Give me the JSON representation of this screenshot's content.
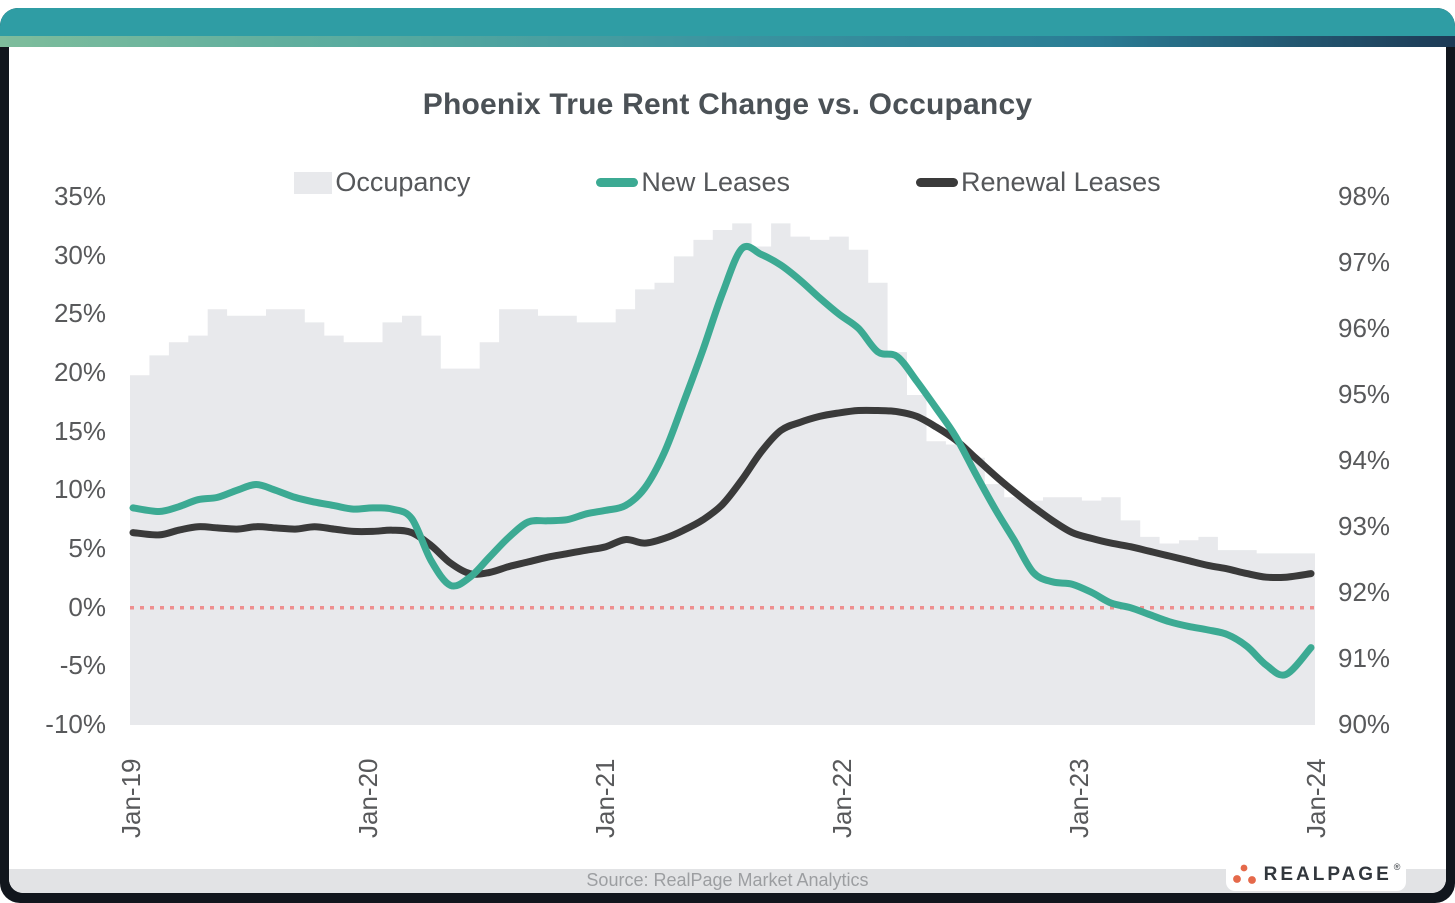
{
  "header": {
    "title": "Phoenix True Rent Change vs. Occupancy"
  },
  "legend": [
    {
      "id": "occupancy",
      "label": "Occupancy",
      "swatch": "area",
      "color": "#e8e9ec"
    },
    {
      "id": "new-leases",
      "label": "New Leases",
      "swatch": "line",
      "color": "#3caa93"
    },
    {
      "id": "renewal-leases",
      "label": "Renewal Leases",
      "swatch": "line",
      "color": "#3a3a3a"
    }
  ],
  "footer": {
    "source": "Source: RealPage Market Analytics",
    "logo_text": "REALPAGE",
    "logo_reg": "®"
  },
  "colors": {
    "accent_bar": "#2f9da4",
    "frame": "#11161d",
    "occupancy_fill": "#e8e9ec",
    "new_leases": "#3caa93",
    "renewal_leases": "#3a3a3a",
    "zero_line": "#ee8f8f",
    "axis_text": "#58595b",
    "title_text": "#4b5156",
    "footer_band": "#e2e3e5",
    "logo_orange": "#e5694a"
  },
  "chart_data": {
    "type": "combo",
    "title": "Phoenix True Rent Change vs. Occupancy",
    "x_start": "Jan-19",
    "x_end": "Jan-24",
    "x_tick_labels": [
      "Jan-19",
      "Jan-20",
      "Jan-21",
      "Jan-22",
      "Jan-23",
      "Jan-24"
    ],
    "left_axis": {
      "tick_labels": [
        "35%",
        "30%",
        "25%",
        "20%",
        "15%",
        "10%",
        "5%",
        "0%",
        "-5%",
        "-10%"
      ],
      "min": -10,
      "max": 35
    },
    "right_axis": {
      "tick_labels": [
        "98%",
        "97%",
        "96%",
        "95%",
        "94%",
        "93%",
        "92%",
        "91%",
        "90%"
      ],
      "min": 90,
      "max": 98
    },
    "zero_reference_line": 0,
    "grid": false,
    "legend_position": "top",
    "series": [
      {
        "name": "Occupancy",
        "type": "area",
        "axis": "right",
        "color": "#e8e9ec",
        "values": [
          95.3,
          95.6,
          95.8,
          95.9,
          96.3,
          96.2,
          96.2,
          96.3,
          96.3,
          96.1,
          95.9,
          95.8,
          95.8,
          96.1,
          96.2,
          95.9,
          95.4,
          95.4,
          95.8,
          96.3,
          96.3,
          96.2,
          96.2,
          96.1,
          96.1,
          96.3,
          96.6,
          96.7,
          97.1,
          97.35,
          97.5,
          97.6,
          97.25,
          97.6,
          97.4,
          97.35,
          97.4,
          97.2,
          96.7,
          95.65,
          95.0,
          94.3,
          94.25,
          94.05,
          93.65,
          93.45,
          93.4,
          93.45,
          93.45,
          93.4,
          93.45,
          93.1,
          92.85,
          92.75,
          92.8,
          92.85,
          92.65,
          92.65,
          92.6,
          92.6,
          92.6
        ]
      },
      {
        "name": "New Leases",
        "type": "line",
        "axis": "left",
        "color": "#3caa93",
        "values": [
          8.5,
          8.2,
          8.6,
          9.2,
          9.4,
          10.0,
          10.5,
          10.0,
          9.4,
          9.0,
          8.7,
          8.4,
          8.5,
          8.4,
          7.6,
          4.0,
          1.9,
          2.6,
          4.3,
          6.0,
          7.3,
          7.4,
          7.5,
          8.0,
          8.3,
          8.7,
          10.2,
          13.2,
          17.5,
          22.0,
          26.8,
          30.6,
          30.1,
          29.2,
          27.9,
          26.4,
          25.0,
          23.8,
          21.8,
          21.4,
          19.3,
          17.0,
          14.6,
          11.5,
          8.5,
          5.8,
          3.0,
          2.2,
          2.0,
          1.3,
          0.4,
          0.0,
          -0.6,
          -1.2,
          -1.6,
          -1.9,
          -2.3,
          -3.3,
          -4.9,
          -5.7,
          -3.4
        ]
      },
      {
        "name": "Renewal Leases",
        "type": "line",
        "axis": "left",
        "color": "#3a3a3a",
        "values": [
          6.4,
          6.2,
          6.6,
          6.9,
          6.8,
          6.7,
          6.9,
          6.8,
          6.7,
          6.9,
          6.7,
          6.5,
          6.5,
          6.6,
          6.4,
          5.3,
          3.8,
          2.9,
          3.0,
          3.5,
          3.9,
          4.3,
          4.6,
          4.9,
          5.2,
          5.8,
          5.5,
          5.9,
          6.6,
          7.5,
          8.8,
          10.9,
          13.3,
          15.1,
          15.8,
          16.3,
          16.6,
          16.8,
          16.8,
          16.7,
          16.3,
          15.4,
          14.3,
          12.8,
          11.3,
          9.9,
          8.6,
          7.4,
          6.4,
          5.9,
          5.5,
          5.2,
          4.8,
          4.4,
          4.0,
          3.6,
          3.3,
          2.9,
          2.6,
          2.6,
          2.9
        ]
      }
    ]
  }
}
